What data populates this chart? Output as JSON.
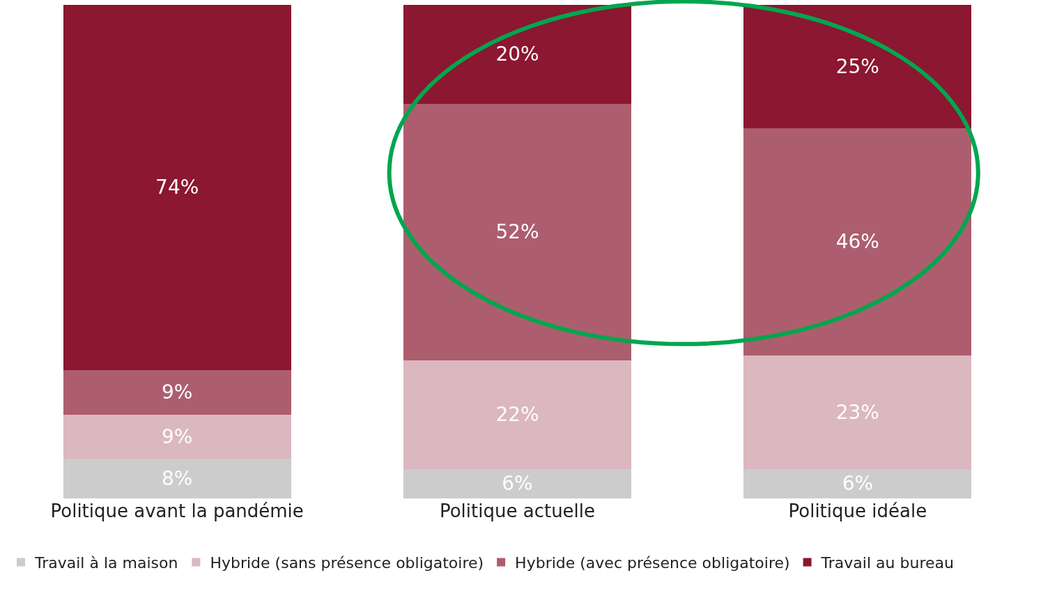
{
  "chart_data": {
    "type": "bar",
    "stacked": true,
    "legend": "bottom",
    "categories": [
      "Politique avant la pandémie",
      "Politique actuelle",
      "Politique idéale"
    ],
    "series": [
      {
        "name": "Travail à la maison",
        "color": "#cccccc",
        "values": [
          8,
          6,
          6
        ],
        "value_labels": [
          "8%",
          "6%",
          "6%"
        ]
      },
      {
        "name": "Hybride (sans présence obligatoire)",
        "color": "#dbb7bf",
        "values": [
          9,
          22,
          23
        ],
        "value_labels": [
          "9%",
          "22%",
          "23%"
        ]
      },
      {
        "name": "Hybride (avec présence obligatoire)",
        "color": "#ad5e6e",
        "values": [
          9,
          52,
          46
        ],
        "value_labels": [
          "9%",
          "52%",
          "46%"
        ]
      },
      {
        "name": "Travail au bureau",
        "color": "#8b1730",
        "values": [
          74,
          20,
          25
        ],
        "value_labels": [
          "74%",
          "20%",
          "25%"
        ]
      }
    ]
  }
}
